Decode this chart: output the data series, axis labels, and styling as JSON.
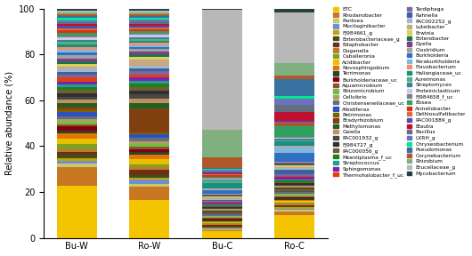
{
  "categories": [
    "Bu-W",
    "Ro-W",
    "Bu-C",
    "Ro-C"
  ],
  "ylabel": "Relative abundance (%)",
  "genera": [
    "ETC",
    "Rhodanobacter",
    "Pantoea",
    "Mucilaginibacter",
    "FJ984661_g",
    "Enterobacteriaceae_g",
    "Edaphobacter",
    "Duganella",
    "Caballeronia",
    "Acidibacter",
    "Novosphingobium",
    "Terrimonas",
    "Burkholderiaceae_uc",
    "Aquamicrobium",
    "Rhizomicrobium",
    "Cellvibrio",
    "Christensenellaceae_uc",
    "Albidiferax",
    "Petrimonas",
    "Bradyrhizobium",
    "Methylomonas",
    "Gaiella",
    "PAC001932_g",
    "FJ984727_g",
    "PAC000056_g",
    "Moeniiplasma_f_uc",
    "Streptococcus",
    "Sphingomonas",
    "Thermohalobacter_f_uc",
    "Tardiphaga",
    "Rahnella",
    "PAC002252_g",
    "Luteibacter",
    "Erwinia",
    "Enterobacter",
    "Dyella",
    "Clostridium",
    "Burkholderia",
    "Paraburkholderia",
    "Flavobacterium",
    "Haliangiaceae_uc",
    "Aureimonas",
    "Streptomyces",
    "Proteiniclasticum",
    "FJ984658_f_uc",
    "Bosea",
    "Acinetobacter",
    "Dethiosulfatibacter",
    "PAC001889_g",
    "Blautia",
    "Bacillus",
    "LXRH_g",
    "Chryseobacterium",
    "Pseudomonas",
    "Corynebacterium",
    "Rhizobium",
    "Brucellaceae_g",
    "Mycobacterium"
  ],
  "colors": {
    "ETC": "#F5C400",
    "Rhodanobacter": "#C87820",
    "Pantoea": "#C8C870",
    "Mucilaginibacter": "#7090D0",
    "FJ984661_g": "#C8A000",
    "Enterobacteriaceae_g": "#405020",
    "Edaphobacter": "#703010",
    "Duganella": "#C07830",
    "Caballeronia": "#80A020",
    "Acidibacter": "#E8C000",
    "Novosphingobium": "#E07800",
    "Terrimonas": "#304030",
    "Burkholderiaceae_uc": "#800010",
    "Aquamicrobium": "#905030",
    "Rhizomicrobium": "#70C040",
    "Cellvibrio": "#B0A060",
    "Christensenellaceae_uc": "#607080",
    "Albidiferax": "#3050C0",
    "Petrimonas": "#806000",
    "Bradyrhizobium": "#804010",
    "Methylomonas": "#206020",
    "Gaiella": "#C09060",
    "PAC001932_g": "#484848",
    "FJ984727_g": "#303030",
    "PAC000056_g": "#706030",
    "Moeniiplasma_f_uc": "#208020",
    "Streptococcus": "#20A090",
    "Sphingomonas": "#8020B0",
    "Thermohalobacter_f_uc": "#E04010",
    "Tardiphaga": "#7868A0",
    "Rahnella": "#4060A0",
    "PAC002252_g": "#A0B8D0",
    "Luteibacter": "#C8A880",
    "Erwinia": "#D8D060",
    "Enterobacter": "#207050",
    "Dyella": "#804080",
    "Clostridium": "#A0A0A0",
    "Burkholderia": "#3070C0",
    "Paraburkholderia": "#80B8E0",
    "Flavobacterium": "#F09070",
    "Haliangiaceae_uc": "#189080",
    "Aureimonas": "#50B080",
    "Streptomyces": "#408090",
    "Proteiniclasticum": "#C8C8E8",
    "FJ984658_f_uc": "#808080",
    "Bosea": "#30A060",
    "Acinetobacter": "#E03010",
    "Dethiosulfatibacter": "#D07040",
    "PAC001889_g": "#5848B0",
    "Blautia": "#C01030",
    "Bacillus": "#607080",
    "LXRH_g": "#7070C0",
    "Chryseobacterium": "#00E890",
    "Pseudomonas": "#3870A0",
    "Corynebacterium": "#B05828",
    "Rhizobium": "#80B080",
    "Brucellaceae_g": "#B8B8B8",
    "Mycobacterium": "#284040"
  },
  "values": {
    "Bu-W": [
      27.0,
      9.5,
      2.0,
      1.5,
      1.2,
      1.8,
      1.5,
      1.5,
      2.5,
      3.0,
      2.5,
      1.5,
      2.0,
      1.2,
      1.5,
      1.2,
      1.5,
      2.0,
      1.5,
      1.5,
      2.0,
      1.5,
      1.5,
      2.0,
      1.5,
      1.5,
      1.5,
      1.5,
      2.0,
      1.5,
      1.5,
      1.5,
      1.2,
      1.2,
      1.5,
      1.5,
      1.5,
      1.5,
      1.5,
      1.5,
      1.2,
      1.2,
      1.2,
      1.2,
      1.2,
      1.2,
      1.2,
      1.2,
      1.2,
      1.0,
      1.0,
      1.0,
      1.0,
      1.0,
      1.0,
      1.0,
      1.0,
      1.0
    ],
    "Ro-W": [
      20.0,
      7.0,
      1.5,
      2.0,
      1.2,
      1.5,
      2.5,
      1.5,
      1.5,
      3.0,
      2.0,
      1.5,
      1.5,
      1.5,
      1.2,
      1.5,
      2.0,
      1.5,
      1.0,
      13.0,
      2.5,
      2.5,
      2.5,
      1.5,
      2.0,
      2.0,
      1.5,
      1.5,
      1.5,
      2.0,
      1.5,
      1.5,
      3.0,
      1.5,
      1.5,
      1.5,
      1.0,
      1.0,
      1.0,
      1.5,
      1.0,
      1.0,
      1.0,
      1.0,
      1.0,
      1.0,
      1.0,
      1.0,
      1.0,
      1.0,
      1.0,
      1.0,
      1.0,
      1.0,
      1.0,
      1.0,
      1.0,
      1.0
    ],
    "Bu-C": [
      3.0,
      0.5,
      0.5,
      0.5,
      0.5,
      0.5,
      0.5,
      0.5,
      0.5,
      0.5,
      0.5,
      0.5,
      0.5,
      0.5,
      0.5,
      0.5,
      0.5,
      0.5,
      0.5,
      0.5,
      0.5,
      0.5,
      0.5,
      0.5,
      0.5,
      0.5,
      0.5,
      0.5,
      0.5,
      0.5,
      0.5,
      0.5,
      0.5,
      0.5,
      0.5,
      0.5,
      0.5,
      1.5,
      0.5,
      0.5,
      2.5,
      1.0,
      0.5,
      0.5,
      0.5,
      0.5,
      0.5,
      0.5,
      0.5,
      0.5,
      0.5,
      0.5,
      0.5,
      0.5,
      5.0,
      13.0,
      57.0,
      0.5
    ],
    "Ro-C": [
      9.0,
      1.5,
      0.5,
      0.5,
      0.5,
      0.5,
      0.5,
      0.5,
      0.5,
      0.5,
      0.5,
      0.5,
      0.5,
      0.5,
      0.5,
      0.5,
      0.5,
      0.5,
      0.5,
      0.5,
      0.5,
      0.5,
      0.5,
      0.5,
      0.5,
      0.5,
      0.5,
      1.0,
      0.5,
      0.5,
      2.0,
      0.5,
      0.5,
      0.5,
      0.5,
      0.5,
      0.5,
      3.5,
      2.5,
      0.5,
      1.5,
      0.5,
      0.5,
      0.5,
      0.5,
      4.5,
      0.5,
      0.5,
      0.5,
      3.5,
      3.0,
      2.5,
      1.0,
      6.5,
      1.5,
      5.0,
      20.0,
      1.5
    ]
  }
}
